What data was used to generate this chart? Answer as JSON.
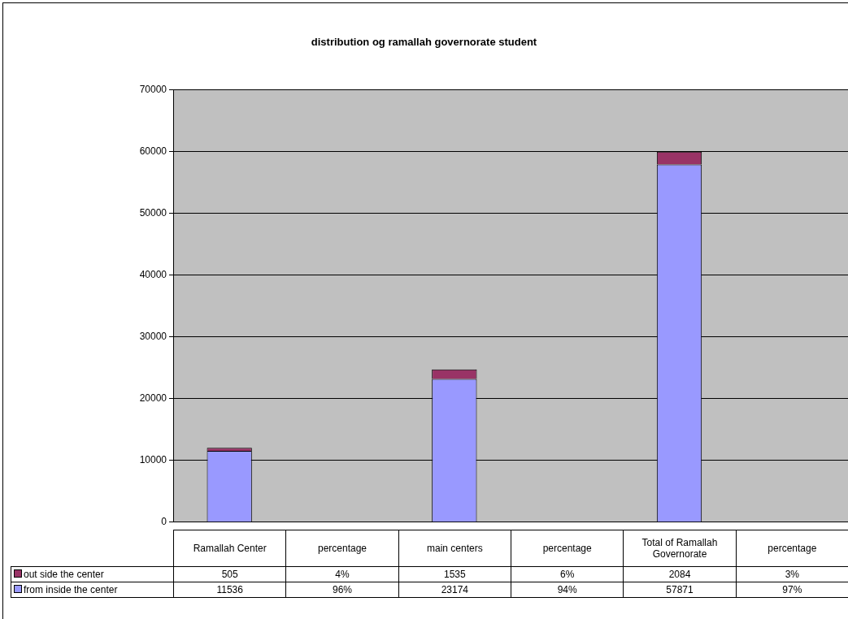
{
  "chart_data": {
    "type": "bar",
    "title": "distribution og ramallah governorate student",
    "categories": [
      "Ramallah Center",
      "percentage",
      "main centers",
      "percentage",
      "Total of Ramallah Governorate",
      "percentage"
    ],
    "series": [
      {
        "name": "from inside the center",
        "color": "#9999ff",
        "values": [
          11536,
          96,
          23174,
          94,
          57871,
          97
        ],
        "value_labels": [
          "11536",
          "96%",
          "23174",
          "94%",
          "57871",
          "97%"
        ]
      },
      {
        "name": "out side the center",
        "color": "#993366",
        "values": [
          505,
          4,
          1535,
          6,
          2084,
          3
        ],
        "value_labels": [
          "505",
          "4%",
          "1535",
          "6%",
          "2084",
          "3%"
        ]
      }
    ],
    "stacked": true,
    "ylim": [
      0,
      70000
    ],
    "yticks": [
      0,
      10000,
      20000,
      30000,
      40000,
      50000,
      60000,
      70000
    ],
    "grid": "y",
    "legend": "bottom"
  }
}
